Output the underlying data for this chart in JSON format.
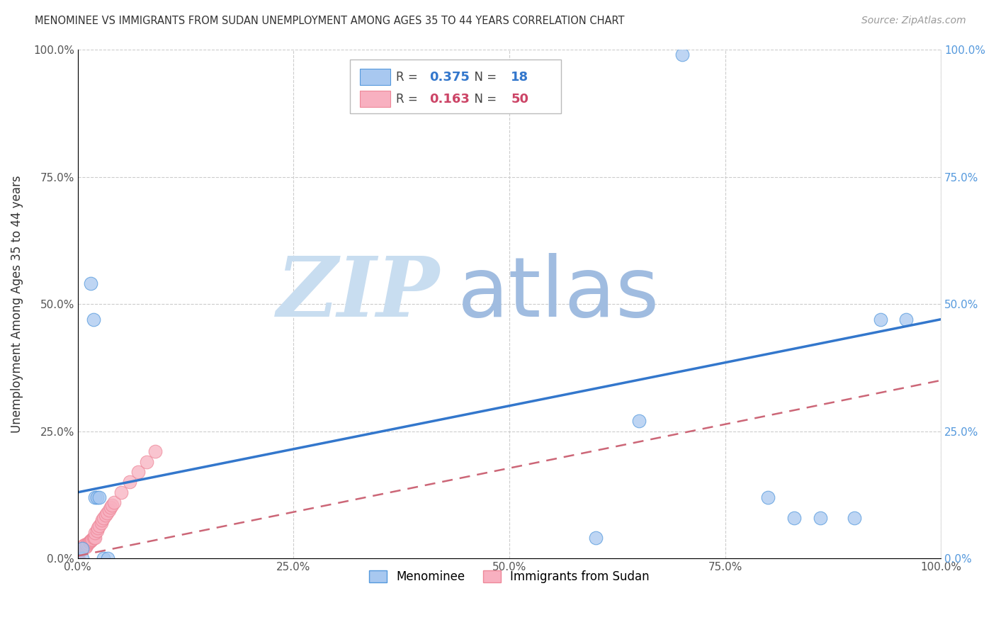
{
  "title": "MENOMINEE VS IMMIGRANTS FROM SUDAN UNEMPLOYMENT AMONG AGES 35 TO 44 YEARS CORRELATION CHART",
  "source": "Source: ZipAtlas.com",
  "ylabel": "Unemployment Among Ages 35 to 44 years",
  "xlim": [
    0,
    1.0
  ],
  "ylim": [
    0,
    1.0
  ],
  "xtick_labels": [
    "0.0%",
    "25.0%",
    "50.0%",
    "75.0%",
    "100.0%"
  ],
  "xtick_vals": [
    0.0,
    0.25,
    0.5,
    0.75,
    1.0
  ],
  "ytick_labels": [
    "0.0%",
    "25.0%",
    "50.0%",
    "75.0%",
    "100.0%"
  ],
  "ytick_vals": [
    0.0,
    0.25,
    0.5,
    0.75,
    1.0
  ],
  "menominee_x": [
    0.005,
    0.005,
    0.015,
    0.018,
    0.02,
    0.022,
    0.025,
    0.03,
    0.035,
    0.6,
    0.65,
    0.7,
    0.8,
    0.83,
    0.86,
    0.9,
    0.93,
    0.96
  ],
  "menominee_y": [
    0.0,
    0.02,
    0.54,
    0.47,
    0.12,
    0.12,
    0.12,
    0.0,
    0.0,
    0.04,
    0.27,
    0.99,
    0.12,
    0.08,
    0.08,
    0.08,
    0.47,
    0.47
  ],
  "sudan_x": [
    0.0,
    0.0,
    0.0,
    0.0,
    0.0,
    0.0,
    0.0,
    0.0,
    0.0,
    0.0,
    0.0,
    0.0,
    0.002,
    0.003,
    0.004,
    0.005,
    0.005,
    0.006,
    0.007,
    0.008,
    0.009,
    0.01,
    0.01,
    0.012,
    0.013,
    0.014,
    0.015,
    0.016,
    0.017,
    0.018,
    0.019,
    0.02,
    0.02,
    0.022,
    0.023,
    0.025,
    0.027,
    0.028,
    0.03,
    0.032,
    0.034,
    0.036,
    0.038,
    0.04,
    0.042,
    0.05,
    0.06,
    0.07,
    0.08,
    0.09
  ],
  "sudan_y": [
    0.0,
    0.0,
    0.0,
    0.0,
    0.0,
    0.005,
    0.008,
    0.01,
    0.012,
    0.015,
    0.018,
    0.02,
    0.015,
    0.017,
    0.019,
    0.02,
    0.022,
    0.024,
    0.025,
    0.027,
    0.022,
    0.025,
    0.028,
    0.03,
    0.032,
    0.033,
    0.035,
    0.037,
    0.038,
    0.04,
    0.042,
    0.04,
    0.05,
    0.055,
    0.06,
    0.065,
    0.07,
    0.075,
    0.08,
    0.085,
    0.09,
    0.095,
    0.1,
    0.105,
    0.11,
    0.13,
    0.15,
    0.17,
    0.19,
    0.21
  ],
  "menominee_R": 0.375,
  "menominee_N": 18,
  "sudan_R": 0.163,
  "sudan_N": 50,
  "blue_dot_color": "#a8c8f0",
  "blue_edge_color": "#5599dd",
  "pink_dot_color": "#f8b0c0",
  "pink_edge_color": "#ee8899",
  "blue_line_color": "#3377cc",
  "pink_line_color": "#cc6677",
  "blue_line_start_y": 0.13,
  "blue_line_end_y": 0.47,
  "pink_line_start_y": 0.005,
  "pink_line_end_y": 0.35,
  "watermark_zip": "ZIP",
  "watermark_atlas": "atlas",
  "watermark_color_zip": "#c8ddf0",
  "watermark_color_atlas": "#a0bce0",
  "background_color": "#ffffff",
  "grid_color": "#cccccc"
}
